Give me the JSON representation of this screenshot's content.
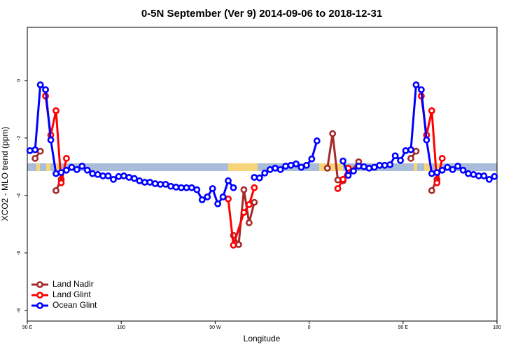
{
  "chart_data": {
    "type": "line",
    "title": "0-5N September (Ver 9)   2014-09-06 to 2018-12-31",
    "x_label": "Longitude",
    "y_label": "XCO2 - MLO trend (ppm)",
    "xlim": [
      90,
      540
    ],
    "ylim": [
      -8.37,
      1.85
    ],
    "xticks": [
      {
        "value": 90,
        "label": "90 E"
      },
      {
        "value": 180,
        "label": "180"
      },
      {
        "value": 270,
        "label": "90 W"
      },
      {
        "value": 360,
        "label": "0"
      },
      {
        "value": 450,
        "label": "90 E"
      },
      {
        "value": 540,
        "label": "180"
      }
    ],
    "yticks": [
      0,
      -2,
      -4,
      -6,
      -8
    ],
    "legend": "bottom-left",
    "series": [
      {
        "name": "Land Nadir",
        "color": "#a52a2a",
        "x": [
          97.5,
          102.5,
          110,
          117.5,
          122.5,
          200,
          287.5,
          292.5,
          297.5,
          302.5,
          307.5,
          340,
          377.5,
          382.5,
          387.5,
          392.5,
          407.5,
          430,
          457.5,
          462.5,
          470,
          477.5,
          482.5
        ],
        "values": [
          -2.71,
          -2.46,
          null,
          -3.83,
          -3.44,
          null,
          -5.39,
          -5.71,
          -3.8,
          -4.95,
          -4.24,
          null,
          -3.05,
          -1.85,
          -3.46,
          -3.49,
          -2.83,
          null,
          -2.71,
          -2.46,
          null,
          -3.83,
          -3.44
        ]
      },
      {
        "name": "Land Glint",
        "color": "#ff0000",
        "x": [
          107.5,
          112.5,
          117.5,
          122.5,
          127.5,
          200,
          282.5,
          287.5,
          297.5,
          302.5,
          307.5,
          340,
          387.5,
          392.5,
          397.5,
          430,
          467.5,
          472.5,
          477.5,
          482.5,
          487.5
        ],
        "values": [
          -0.54,
          -1.9,
          -1.05,
          -3.56,
          -2.71,
          null,
          -4.12,
          -5.73,
          -4.59,
          -4.32,
          -3.73,
          null,
          -3.76,
          -3.44,
          -3.05,
          null,
          -0.54,
          -1.9,
          -1.05,
          -3.56,
          -2.71
        ]
      },
      {
        "name": "Ocean Glint",
        "color": "#0000ff",
        "x": [
          92.5,
          97.5,
          102.5,
          107.5,
          112.5,
          117.5,
          122.5,
          127.5,
          132.5,
          137.5,
          142.5,
          147.5,
          152.5,
          157.5,
          162.5,
          167.5,
          172.5,
          177.5,
          182.5,
          187.5,
          192.5,
          197.5,
          202.5,
          207.5,
          212.5,
          217.5,
          222.5,
          227.5,
          232.5,
          237.5,
          242.5,
          247.5,
          252.5,
          257.5,
          262.5,
          267.5,
          272.5,
          277.5,
          282.5,
          287.5,
          297.5,
          307.5,
          312.5,
          317.5,
          322.5,
          327.5,
          332.5,
          337.5,
          342.5,
          347.5,
          352.5,
          357.5,
          362.5,
          367.5,
          377.5,
          392.5,
          397.5,
          402.5,
          407.5,
          412.5,
          417.5,
          422.5,
          427.5,
          432.5,
          437.5,
          442.5,
          447.5,
          452.5,
          457.5,
          462.5,
          467.5,
          472.5,
          477.5,
          482.5,
          487.5,
          492.5,
          497.5,
          502.5,
          507.5,
          512.5,
          517.5,
          522.5,
          527.5,
          532.5,
          537.5
        ],
        "values": [
          -2.44,
          -2.41,
          -0.15,
          -0.32,
          -2.07,
          -3.24,
          -3.2,
          -3.12,
          -3.02,
          -3.1,
          -2.98,
          -3.12,
          -3.24,
          -3.27,
          -3.32,
          -3.32,
          -3.44,
          -3.34,
          -3.32,
          -3.37,
          -3.41,
          -3.49,
          -3.54,
          -3.54,
          -3.59,
          -3.61,
          -3.61,
          -3.68,
          -3.71,
          -3.73,
          -3.73,
          -3.73,
          -3.8,
          -4.15,
          -4.05,
          -3.76,
          -4.29,
          -4.05,
          -3.49,
          -3.73,
          null,
          -3.37,
          -3.39,
          -3.22,
          -3.1,
          -3.05,
          -3.1,
          -2.98,
          -2.95,
          -2.9,
          -3.02,
          -2.95,
          -2.73,
          -2.1,
          null,
          -2.8,
          -3.3,
          -3.15,
          -2.98,
          -3.0,
          -3.05,
          -3.02,
          -2.95,
          -2.95,
          -2.93,
          -2.62,
          -2.78,
          -2.44,
          -2.41,
          -0.15,
          -0.32,
          -2.07,
          -3.24,
          -3.2,
          -3.12,
          -3.02,
          -3.1,
          -2.98,
          -3.12,
          -3.24,
          -3.27,
          -3.32,
          -3.32,
          -3.44,
          -3.34
        ]
      }
    ]
  }
}
